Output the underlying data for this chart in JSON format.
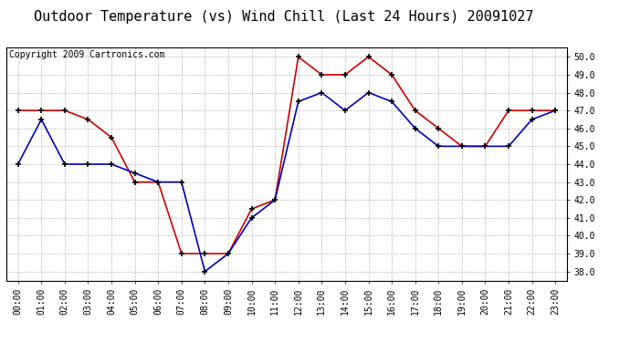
{
  "title": "Outdoor Temperature (vs) Wind Chill (Last 24 Hours) 20091027",
  "copyright": "Copyright 2009 Cartronics.com",
  "x_labels": [
    "00:00",
    "01:00",
    "02:00",
    "03:00",
    "04:00",
    "05:00",
    "06:00",
    "07:00",
    "08:00",
    "09:00",
    "10:00",
    "11:00",
    "12:00",
    "13:00",
    "14:00",
    "15:00",
    "16:00",
    "17:00",
    "18:00",
    "19:00",
    "20:00",
    "21:00",
    "22:00",
    "23:00"
  ],
  "temp_red": [
    47.0,
    47.0,
    47.0,
    46.5,
    45.5,
    43.0,
    43.0,
    39.0,
    39.0,
    39.0,
    41.5,
    42.0,
    50.0,
    49.0,
    49.0,
    50.0,
    49.0,
    47.0,
    46.0,
    45.0,
    45.0,
    47.0,
    47.0,
    47.0
  ],
  "wind_blue": [
    44.0,
    46.5,
    44.0,
    44.0,
    44.0,
    43.5,
    43.0,
    43.0,
    38.0,
    39.0,
    41.0,
    42.0,
    47.5,
    48.0,
    47.0,
    48.0,
    47.5,
    46.0,
    45.0,
    45.0,
    45.0,
    45.0,
    46.5,
    47.0
  ],
  "ylim": [
    37.5,
    50.5
  ],
  "yticks": [
    38.0,
    39.0,
    40.0,
    41.0,
    42.0,
    43.0,
    44.0,
    45.0,
    46.0,
    47.0,
    48.0,
    49.0,
    50.0
  ],
  "red_color": "#cc0000",
  "blue_color": "#0000bb",
  "bg_color": "#ffffff",
  "grid_color": "#bbbbbb",
  "title_fontsize": 11,
  "copyright_fontsize": 7,
  "tick_fontsize": 7,
  "ytick_fontsize": 7
}
